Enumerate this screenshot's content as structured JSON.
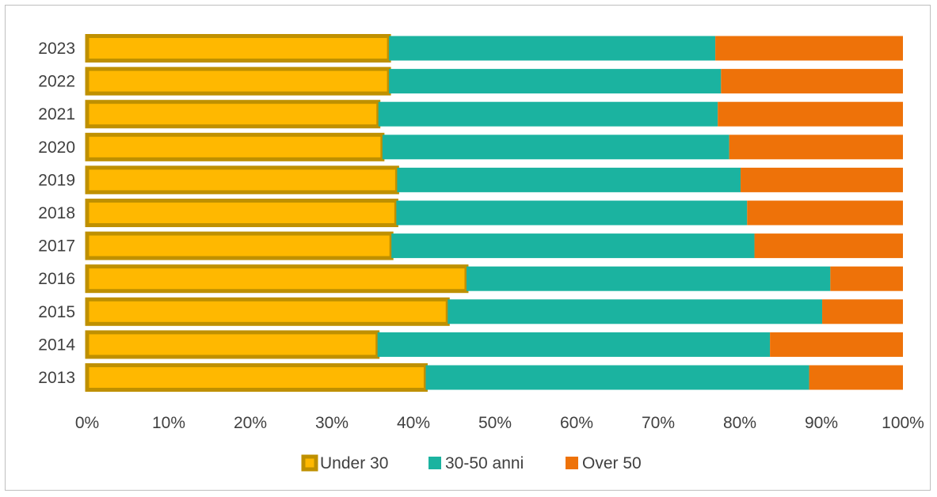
{
  "chart_data": {
    "type": "bar",
    "orientation": "horizontal",
    "stacked": "percent",
    "title": "",
    "xlabel": "",
    "ylabel": "",
    "xlim": [
      0,
      100
    ],
    "x_tick_values": [
      0,
      10,
      20,
      30,
      40,
      50,
      60,
      70,
      80,
      90,
      100
    ],
    "x_ticks": [
      "0%",
      "10%",
      "20%",
      "30%",
      "40%",
      "50%",
      "60%",
      "70%",
      "80%",
      "90%",
      "100%"
    ],
    "grid": false,
    "legend_position": "bottom",
    "categories": [
      "2023",
      "2022",
      "2021",
      "2020",
      "2019",
      "2018",
      "2017",
      "2016",
      "2015",
      "2014",
      "2013"
    ],
    "series": [
      {
        "name": "Under 30",
        "color": "#FFB800",
        "border_color": "#BF9000",
        "values": [
          37,
          37,
          35.7,
          36.2,
          38,
          37.9,
          37.3,
          46.5,
          44.2,
          35.6,
          41.5
        ]
      },
      {
        "name": "30-50 anni",
        "color": "#1BB3A0",
        "values": [
          40,
          40.7,
          41.6,
          42.5,
          42.1,
          43,
          44.5,
          44.6,
          45.9,
          48.1,
          47
        ]
      },
      {
        "name": "Over 50",
        "color": "#EE7209",
        "values": [
          23,
          22.3,
          22.7,
          21.3,
          19.9,
          19.1,
          18.2,
          8.9,
          9.9,
          16.3,
          11.5
        ]
      }
    ]
  }
}
